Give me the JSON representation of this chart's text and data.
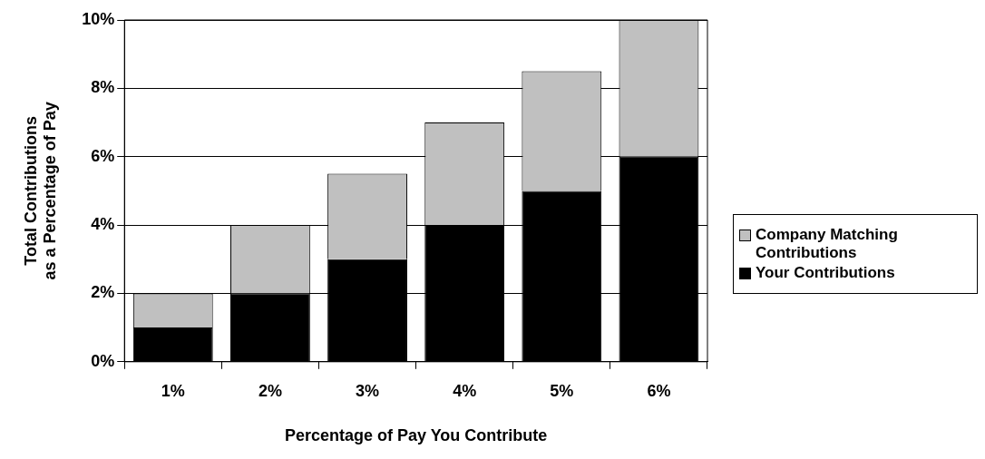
{
  "chart_data": {
    "type": "bar",
    "xlabel": "Percentage of Pay You Contribute",
    "ylabel": "Total Contributions as a Percentage of Pay",
    "categories": [
      "1%",
      "2%",
      "3%",
      "4%",
      "5%",
      "6%"
    ],
    "stacked": true,
    "legend": "right",
    "grid": "y",
    "ylim": [
      0,
      10
    ],
    "yticks": [
      {
        "value": 0,
        "label": "0%"
      },
      {
        "value": 2,
        "label": "2%"
      },
      {
        "value": 4,
        "label": "4%"
      },
      {
        "value": 6,
        "label": "6%"
      },
      {
        "value": 8,
        "label": "8%"
      },
      {
        "value": 10,
        "label": "10%"
      }
    ],
    "series": [
      {
        "name": "Your Contributions",
        "color": "#000000",
        "values": [
          1,
          2,
          3,
          4,
          5,
          6
        ]
      },
      {
        "name": "Company Matching Contributions",
        "color": "#c0c0c0",
        "values": [
          1,
          2,
          2.5,
          3,
          3.5,
          4
        ]
      }
    ]
  }
}
